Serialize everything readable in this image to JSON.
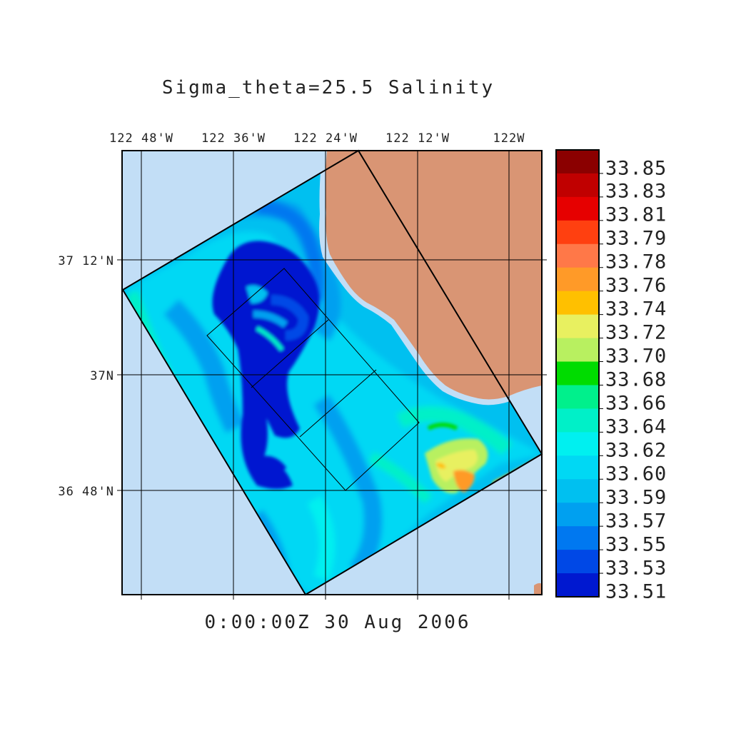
{
  "title": "Sigma_theta=25.5 Salinity",
  "timestamp": "0:00:00Z  30 Aug 2006",
  "map": {
    "projection": "lat-lon",
    "lon_labels": [
      "122 48'W",
      "122 36'W",
      "122 24'W",
      "122 12'W",
      "122W"
    ],
    "lat_labels": [
      "37 12'N",
      "37N",
      "36 48'N"
    ],
    "land_color": "#d99574",
    "ocean_color": "#c2def6",
    "gridlines": true
  },
  "colorbar": {
    "labels": [
      "33.85",
      "33.83",
      "33.81",
      "33.79",
      "33.78",
      "33.76",
      "33.74",
      "33.72",
      "33.70",
      "33.68",
      "33.66",
      "33.64",
      "33.62",
      "33.60",
      "33.59",
      "33.57",
      "33.55",
      "33.53",
      "33.51"
    ],
    "colors": [
      "#8b0000",
      "#c00000",
      "#e60000",
      "#ff4010",
      "#ff7848",
      "#ff9a28",
      "#ffc000",
      "#e8f060",
      "#b8f060",
      "#00dc00",
      "#00f08c",
      "#00f0c8",
      "#00f0f0",
      "#00d8f4",
      "#00c0f0",
      "#00a0f0",
      "#0078f0",
      "#0048e6",
      "#0018d0"
    ]
  },
  "chart_data": {
    "type": "heatmap",
    "variable": "Salinity",
    "title": "Sigma_theta=25.5 Salinity",
    "range": [
      33.51,
      33.85
    ],
    "levels": [
      33.51,
      33.53,
      33.55,
      33.57,
      33.59,
      33.6,
      33.62,
      33.64,
      33.66,
      33.68,
      33.7,
      33.72,
      33.74,
      33.76,
      33.78,
      33.79,
      33.81,
      33.83,
      33.85
    ],
    "regions": [
      {
        "name": "low-salinity-filament",
        "value": 33.51
      },
      {
        "name": "offshore-background",
        "value": 33.59
      },
      {
        "name": "western-edge",
        "value": 33.62
      },
      {
        "name": "southeast-nearshore-patch",
        "value": 33.7
      },
      {
        "name": "southeast-coast-max",
        "value": 33.76
      }
    ]
  }
}
